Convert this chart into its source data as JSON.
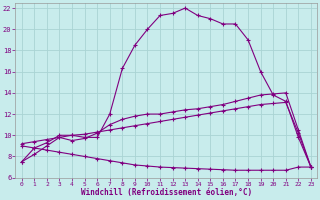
{
  "xlabel": "Windchill (Refroidissement éolien,°C)",
  "bg_color": "#c8ecec",
  "line_color": "#800080",
  "grid_color": "#aad4d4",
  "xlim": [
    -0.5,
    23.5
  ],
  "ylim": [
    6,
    22.5
  ],
  "xticks": [
    0,
    1,
    2,
    3,
    4,
    5,
    6,
    7,
    8,
    9,
    10,
    11,
    12,
    13,
    14,
    15,
    16,
    17,
    18,
    19,
    20,
    21,
    22,
    23
  ],
  "yticks": [
    6,
    8,
    10,
    12,
    14,
    16,
    18,
    20,
    22
  ],
  "line1_x": [
    0,
    1,
    2,
    3,
    4,
    5,
    6,
    7,
    8,
    9,
    10,
    11,
    12,
    13,
    14,
    15,
    16,
    17,
    18,
    19,
    20,
    21,
    22,
    23
  ],
  "line1_y": [
    7.5,
    8.8,
    9.3,
    10.0,
    10.0,
    9.8,
    9.8,
    12.0,
    16.3,
    18.5,
    20.0,
    21.3,
    21.5,
    22.0,
    21.3,
    21.0,
    20.5,
    20.5,
    19.0,
    16.0,
    13.8,
    13.2,
    9.8,
    7.0
  ],
  "line2_x": [
    0,
    1,
    2,
    3,
    4,
    5,
    6,
    7,
    8,
    9,
    10,
    11,
    12,
    13,
    14,
    15,
    16,
    17,
    18,
    19,
    20,
    21,
    22,
    23
  ],
  "line2_y": [
    7.5,
    8.2,
    9.0,
    9.8,
    9.5,
    9.7,
    10.2,
    11.0,
    11.5,
    11.8,
    12.0,
    12.0,
    12.2,
    12.4,
    12.5,
    12.7,
    12.9,
    13.2,
    13.5,
    13.8,
    13.9,
    14.0,
    10.5,
    7.0
  ],
  "line3_x": [
    0,
    1,
    2,
    3,
    4,
    5,
    6,
    7,
    8,
    9,
    10,
    11,
    12,
    13,
    14,
    15,
    16,
    17,
    18,
    19,
    20,
    21,
    22,
    23
  ],
  "line3_y": [
    9.2,
    9.4,
    9.6,
    9.8,
    10.0,
    10.1,
    10.3,
    10.5,
    10.7,
    10.9,
    11.1,
    11.3,
    11.5,
    11.7,
    11.9,
    12.1,
    12.3,
    12.5,
    12.7,
    12.9,
    13.0,
    13.1,
    10.2,
    7.0
  ],
  "line4_x": [
    0,
    1,
    2,
    3,
    4,
    5,
    6,
    7,
    8,
    9,
    10,
    11,
    12,
    13,
    14,
    15,
    16,
    17,
    18,
    19,
    20,
    21,
    22,
    23
  ],
  "line4_y": [
    9.0,
    8.8,
    8.6,
    8.4,
    8.2,
    8.0,
    7.8,
    7.6,
    7.4,
    7.2,
    7.1,
    7.0,
    6.95,
    6.9,
    6.85,
    6.8,
    6.75,
    6.7,
    6.7,
    6.7,
    6.7,
    6.7,
    7.0,
    7.0
  ]
}
